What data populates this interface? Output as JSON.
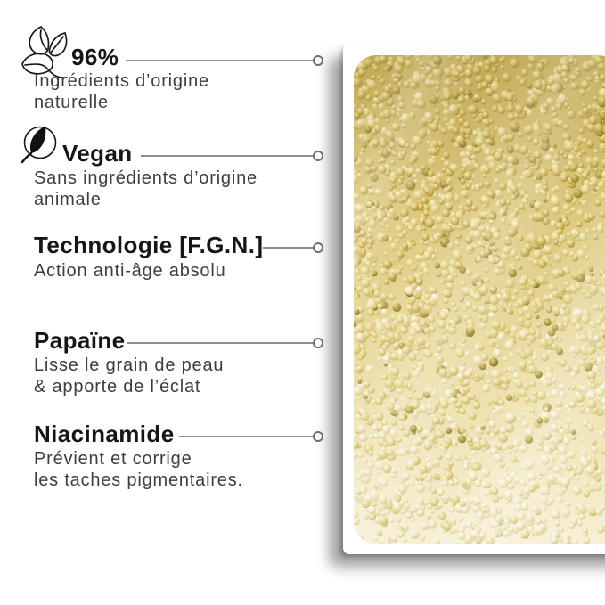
{
  "page": {
    "background": "#ffffff",
    "language": "fr"
  },
  "features": [
    {
      "icon": "natural-leaves-icon",
      "title": "96%",
      "desc": "Ingrédients d’origine\nnaturelle"
    },
    {
      "icon": "vegan-leaf-icon",
      "title": "Vegan",
      "desc": "Sans ingrédients d’origine\nanimale"
    },
    {
      "icon": null,
      "title": "Technologie [F.G.N.]",
      "desc": "Action anti-âge absolu"
    },
    {
      "icon": null,
      "title": "Papaïne",
      "desc": "Lisse le grain de peau\n& apporte de l’éclat"
    },
    {
      "icon": null,
      "title": "Niacinamide",
      "desc": "Prévient et corrige\nles taches pigmentaires."
    }
  ],
  "connector": {
    "line_color": "#8f8f8f",
    "dot_border": "#6e6e6e",
    "dot_fill": "#ffffff"
  },
  "product_image": {
    "alt": "Gros plan de la texture du produit : microbilles dorées",
    "palette": {
      "background_stops": [
        "#c9b05a",
        "#dcc97f",
        "#ecdfa9",
        "#f6f0d6"
      ],
      "bead_gradients": [
        [
          "#f6edbd",
          "#d9bf63",
          "#9c842f"
        ],
        [
          "#faf4d4",
          "#e7d78f",
          "#bfa955"
        ],
        [
          "#fefcf2",
          "#f1e8c2",
          "#d4c281"
        ],
        [
          "#e0cf82",
          "#b59a3e",
          "#7e6a22"
        ]
      ]
    }
  }
}
